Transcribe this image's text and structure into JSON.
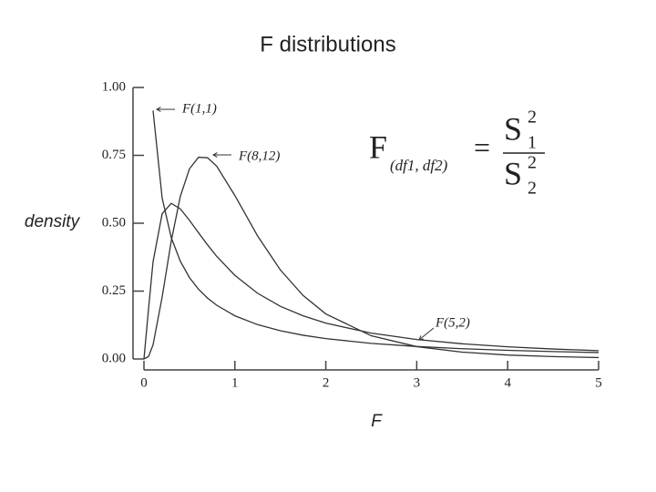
{
  "chart_data": {
    "type": "line",
    "title": "F distributions",
    "x_label": "F",
    "y_label": "density",
    "x": [
      0,
      0.05,
      0.1,
      0.2,
      0.3,
      0.4,
      0.5,
      0.6,
      0.7,
      0.8,
      1,
      1.25,
      1.5,
      1.75,
      2,
      2.5,
      3,
      3.5,
      4,
      4.5,
      5
    ],
    "series": [
      {
        "name": "F(1,1)",
        "color": "#333333",
        "values": [
          null,
          null,
          0.915,
          0.593,
          0.447,
          0.36,
          0.3,
          0.257,
          0.224,
          0.198,
          0.159,
          0.1265,
          0.104,
          0.0875,
          0.075,
          0.0575,
          0.0459,
          0.0378,
          0.0318,
          0.0273,
          0.0237
        ]
      },
      {
        "name": "F(8,12)",
        "color": "#333333",
        "values": [
          0,
          0.009,
          0.052,
          0.228,
          0.434,
          0.599,
          0.7,
          0.743,
          0.741,
          0.71,
          0.602,
          0.453,
          0.328,
          0.234,
          0.166,
          0.0854,
          0.0455,
          0.0252,
          0.0145,
          0.0087,
          0.0053
        ]
      },
      {
        "name": "F(5,2)",
        "color": "#333333",
        "values": [
          0,
          0.183,
          0.358,
          0.535,
          0.573,
          0.553,
          0.511,
          0.465,
          0.42,
          0.378,
          0.308,
          0.242,
          0.194,
          0.159,
          0.132,
          0.0952,
          0.0718,
          0.056,
          0.0449,
          0.0367,
          0.0306
        ]
      }
    ],
    "xlim": [
      0,
      5
    ],
    "ylim": [
      0,
      1
    ],
    "xticks": [
      0,
      1,
      2,
      3,
      4,
      5
    ],
    "yticks": [
      {
        "value": 0,
        "label": "0.00"
      },
      {
        "value": 0.25,
        "label": "0.25"
      },
      {
        "value": 0.5,
        "label": "0.50"
      },
      {
        "value": 0.75,
        "label": "0.75"
      },
      {
        "value": 1,
        "label": "1.00"
      }
    ],
    "grid": false,
    "formula": {
      "lhs": "F",
      "lhs_sub": "(df1, df2)",
      "eq": "=",
      "num": "S",
      "num_sub": "1",
      "num_sup": "2",
      "den": "S",
      "den_sub": "2",
      "den_sup": "2"
    }
  }
}
